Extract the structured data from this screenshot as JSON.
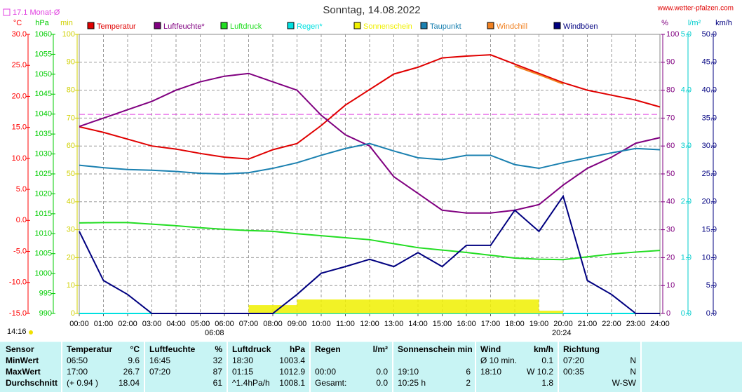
{
  "chart_data": {
    "type": "line",
    "title": "Sonntag, 14.08.2022",
    "source": "www.wetter-pfalzen.com",
    "reference": {
      "value": 17.1,
      "label": "17.1 Monat-Ø",
      "color": "#e040e0"
    },
    "annotations": [
      "14:16",
      "06:08",
      "20:24"
    ],
    "x": [
      0,
      1,
      2,
      3,
      4,
      5,
      6,
      7,
      8,
      9,
      10,
      11,
      12,
      13,
      14,
      15,
      16,
      17,
      18,
      19,
      20,
      21,
      22,
      23,
      24
    ],
    "xlim": [
      0,
      24
    ],
    "xticks": [
      {
        "value": 0,
        "label": "00:00"
      },
      {
        "value": 1,
        "label": "01:00"
      },
      {
        "value": 2,
        "label": "02:00"
      },
      {
        "value": 3,
        "label": "03:00"
      },
      {
        "value": 4,
        "label": "04:00"
      },
      {
        "value": 5,
        "label": "05:00"
      },
      {
        "value": 6,
        "label": "06:00"
      },
      {
        "value": 7,
        "label": "07:00"
      },
      {
        "value": 8,
        "label": "08:00"
      },
      {
        "value": 9,
        "label": "09:00"
      },
      {
        "value": 10,
        "label": "10:00"
      },
      {
        "value": 11,
        "label": "11:00"
      },
      {
        "value": 12,
        "label": "12:00"
      },
      {
        "value": 13,
        "label": "13:00"
      },
      {
        "value": 14,
        "label": "14:00"
      },
      {
        "value": 15,
        "label": "15:00"
      },
      {
        "value": 16,
        "label": "16:00"
      },
      {
        "value": 17,
        "label": "17:00"
      },
      {
        "value": 18,
        "label": "18:00"
      },
      {
        "value": 19,
        "label": "19:00"
      },
      {
        "value": 20,
        "label": "20:00"
      },
      {
        "value": 21,
        "label": "21:00"
      },
      {
        "value": 22,
        "label": "22:00"
      },
      {
        "value": 23,
        "label": "23:00"
      },
      {
        "value": 24,
        "label": "24:00"
      }
    ],
    "grid": true,
    "grid_axis": "min",
    "axes": [
      {
        "unit": "°C",
        "color": "#ff0000",
        "lim": [
          -15,
          30
        ],
        "ticks": [
          {
            "value": -15,
            "label": "-15.0"
          },
          {
            "value": -10,
            "label": "-10.0"
          },
          {
            "value": -5,
            "label": "-5.0"
          },
          {
            "value": 0,
            "label": "0.0"
          },
          {
            "value": 5,
            "label": "5.0"
          },
          {
            "value": 10,
            "label": "10.0"
          },
          {
            "value": 15,
            "label": "15.0"
          },
          {
            "value": 20,
            "label": "20.0"
          },
          {
            "value": 25,
            "label": "25.0"
          },
          {
            "value": 30,
            "label": "30.0"
          }
        ]
      },
      {
        "unit": "hPa",
        "color": "#00cc00",
        "lim": [
          990,
          1060
        ],
        "ticks": [
          990,
          995,
          1000,
          1005,
          1010,
          1015,
          1020,
          1025,
          1030,
          1035,
          1040,
          1045,
          1050,
          1055,
          1060
        ]
      },
      {
        "unit": "min",
        "color": "#d0d000",
        "lim": [
          0,
          100
        ],
        "ticks": [
          0,
          10,
          20,
          30,
          40,
          50,
          60,
          70,
          80,
          90,
          100
        ]
      },
      {
        "unit": "%",
        "color": "#800080",
        "lim": [
          0,
          100
        ],
        "ticks": [
          0,
          10,
          20,
          30,
          40,
          50,
          60,
          70,
          80,
          90,
          100
        ]
      },
      {
        "unit": "l/m²",
        "color": "#00cccc",
        "lim": [
          0,
          5
        ],
        "ticks": [
          {
            "value": 0,
            "label": "0.0"
          },
          {
            "value": 1,
            "label": "1.0"
          },
          {
            "value": 2,
            "label": "2.0"
          },
          {
            "value": 3,
            "label": "3.0"
          },
          {
            "value": 4,
            "label": "4.0"
          },
          {
            "value": 5,
            "label": "5.0"
          }
        ]
      },
      {
        "unit": "km/h",
        "color": "#000080",
        "lim": [
          0,
          50
        ],
        "ticks": [
          {
            "value": 0,
            "label": "0.0"
          },
          {
            "value": 5,
            "label": "5.0"
          },
          {
            "value": 10,
            "label": "10.0"
          },
          {
            "value": 15,
            "label": "15.0"
          },
          {
            "value": 20,
            "label": "20.0"
          },
          {
            "value": 25,
            "label": "25.0"
          },
          {
            "value": 30,
            "label": "30.0"
          },
          {
            "value": 35,
            "label": "35.0"
          },
          {
            "value": 40,
            "label": "40.0"
          },
          {
            "value": 45,
            "label": "45.0"
          },
          {
            "value": 50,
            "label": "50.0"
          }
        ]
      }
    ],
    "series": [
      {
        "name": "Temperatur",
        "color": "#e00000",
        "axis": "°C",
        "values": [
          15.1,
          14.2,
          13.1,
          12.0,
          11.5,
          10.8,
          10.2,
          9.9,
          11.4,
          12.4,
          15.3,
          18.6,
          21.1,
          23.6,
          24.7,
          26.2,
          26.5,
          26.7,
          25.2,
          23.7,
          22.2,
          21.0,
          20.2,
          19.4,
          18.3
        ]
      },
      {
        "name": "Luftfeuchte*",
        "color": "#800080",
        "axis": "%",
        "values": [
          67,
          70,
          73,
          76,
          80,
          83,
          85,
          86,
          83,
          80,
          71,
          64,
          60,
          49,
          43,
          37,
          36,
          36,
          37,
          39,
          46,
          52,
          56,
          61,
          63
        ]
      },
      {
        "name": "Luftdruck",
        "color": "#22dd22",
        "axis": "hPa",
        "values": [
          1012.7,
          1012.8,
          1012.8,
          1012.4,
          1012.0,
          1011.5,
          1011.1,
          1010.8,
          1010.6,
          1010.0,
          1009.5,
          1009.0,
          1008.5,
          1007.5,
          1006.5,
          1005.9,
          1005.3,
          1004.6,
          1003.9,
          1003.6,
          1003.5,
          1004.2,
          1004.9,
          1005.4,
          1005.8
        ]
      },
      {
        "name": "Regen*",
        "color": "#00e0e0",
        "axis": "l/m²",
        "values": [
          0,
          0,
          0,
          0,
          0,
          0,
          0,
          0,
          0,
          0,
          0,
          0,
          0,
          0,
          0,
          0,
          0,
          0,
          0,
          0,
          0,
          0,
          0,
          0,
          0
        ]
      },
      {
        "name": "Sonnenschein",
        "color": "#f0f000",
        "axis": "min",
        "style": "bar",
        "values": [
          0,
          0,
          0,
          0,
          0,
          0,
          0,
          3,
          3,
          5,
          5,
          5,
          5,
          5,
          5,
          5,
          5,
          5,
          5,
          1,
          0,
          0,
          0,
          0,
          0
        ]
      },
      {
        "name": "Taupunkt",
        "color": "#1a80b0",
        "axis": "°C",
        "values": [
          8.9,
          8.5,
          8.2,
          8.1,
          7.9,
          7.6,
          7.5,
          7.7,
          8.4,
          9.3,
          10.5,
          11.6,
          12.4,
          11.2,
          10.1,
          9.8,
          10.5,
          10.5,
          9.0,
          8.4,
          9.3,
          10.1,
          10.9,
          11.6,
          11.4
        ]
      },
      {
        "name": "Windchill",
        "color": "#f08020",
        "axis": "°C",
        "values": [
          null,
          null,
          null,
          null,
          null,
          null,
          null,
          null,
          null,
          null,
          null,
          null,
          null,
          null,
          null,
          null,
          null,
          null,
          24.9,
          23.5,
          22.0,
          null,
          null,
          null,
          null
        ]
      },
      {
        "name": "Windböen",
        "color": "#000080",
        "axis": "km/h",
        "values": [
          14.7,
          5.9,
          3.4,
          0,
          0,
          0,
          0,
          0,
          0,
          3.4,
          7.2,
          8.4,
          9.7,
          8.4,
          10.9,
          8.4,
          12.2,
          12.2,
          18.5,
          14.7,
          21.0,
          5.9,
          3.4,
          0,
          0
        ]
      }
    ]
  },
  "table": {
    "sensor": {
      "name": "Sensor",
      "rows": [
        "MinWert",
        "MaxWert",
        "Durchschnitt"
      ]
    },
    "groups": [
      {
        "name": "Temperatur",
        "unit": "°C",
        "rows": [
          {
            "time": "06:50",
            "value": "9.6"
          },
          {
            "time": "17:00",
            "value": "26.7"
          },
          {
            "time": "(+ 0.94 )",
            "value": "18.04"
          }
        ]
      },
      {
        "name": "Luftfeuchte",
        "unit": "%",
        "rows": [
          {
            "time": "16:45",
            "value": "32"
          },
          {
            "time": "07:20",
            "value": "87"
          },
          {
            "value": "61"
          }
        ]
      },
      {
        "name": "Luftdruck",
        "unit": "hPa",
        "rows": [
          {
            "time": "18:30",
            "value": "1003.4"
          },
          {
            "time": "01:15",
            "value": "1012.9"
          },
          {
            "time": "^1.4hPa/h",
            "value": "1008.1"
          }
        ]
      },
      {
        "name": "Regen",
        "unit": "l/m²",
        "rows": [
          {},
          {
            "time": "00:00",
            "value": "0.0"
          },
          {
            "time": "Gesamt:",
            "value": "0.0"
          }
        ]
      },
      {
        "name": "Sonnenschein min",
        "rows": [
          {},
          {
            "time": "19:10",
            "value": "6"
          },
          {
            "time": "10:25 h",
            "value": "2"
          }
        ]
      },
      {
        "name": "Wind",
        "unit": "km/h",
        "rows": [
          {
            "time": "Ø 10 min.",
            "value": "0.1"
          },
          {
            "time": "18:10",
            "value": "W 10.2"
          },
          {
            "value": "1.8"
          }
        ]
      },
      {
        "name": "Richtung",
        "rows": [
          {
            "time": "07:20",
            "value": "N"
          },
          {
            "time": "00:35",
            "value": "N"
          },
          {
            "value": "W-SW"
          }
        ]
      }
    ]
  }
}
